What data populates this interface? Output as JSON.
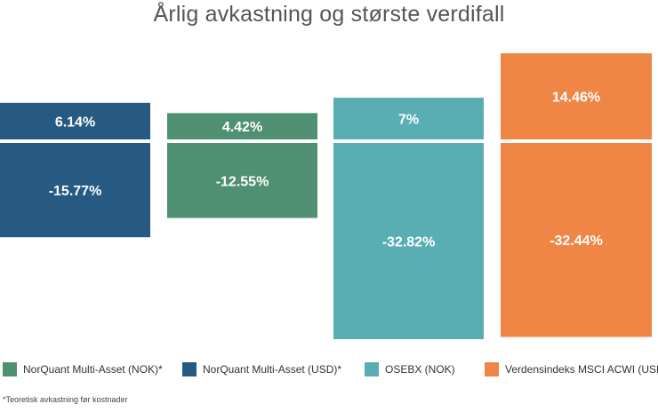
{
  "chart_data": {
    "type": "bar",
    "title": "Årlig avkastning og største verdifall",
    "series": [
      {
        "name": "NorQuant Multi-Asset (USD)*",
        "color": "#265a82",
        "values": [
          6.14,
          -15.77
        ],
        "value_labels": [
          "6.14%",
          "-15.77%"
        ]
      },
      {
        "name": "NorQuant Multi-Asset (NOK)*",
        "color": "#4f9073",
        "values": [
          4.42,
          -12.55
        ],
        "value_labels": [
          "4.42%",
          "-12.55%"
        ]
      },
      {
        "name": "OSEBX (NOK)",
        "color": "#59aeb4",
        "values": [
          7,
          -32.82
        ],
        "value_labels": [
          "7%",
          "-32.82%"
        ]
      },
      {
        "name": "Verdensindeks MSCI ACWI (USD)",
        "color": "#ef8646",
        "values": [
          14.46,
          -32.44
        ],
        "value_labels": [
          "14.46%",
          "-32.44%"
        ]
      }
    ],
    "legend": [
      {
        "label": "NorQuant Multi-Asset (NOK)*",
        "color": "#4f9073"
      },
      {
        "label": "NorQuant Multi-Asset (USD)*",
        "color": "#265a82"
      },
      {
        "label": "OSEBX (NOK)",
        "color": "#59aeb4"
      },
      {
        "label": "Verdensindeks MSCI ACWI (USD)",
        "color": "#ef8646"
      }
    ],
    "legend_position": "bottom",
    "grid": false,
    "footnote": "*Teoretisk avkastning før kostnader"
  }
}
